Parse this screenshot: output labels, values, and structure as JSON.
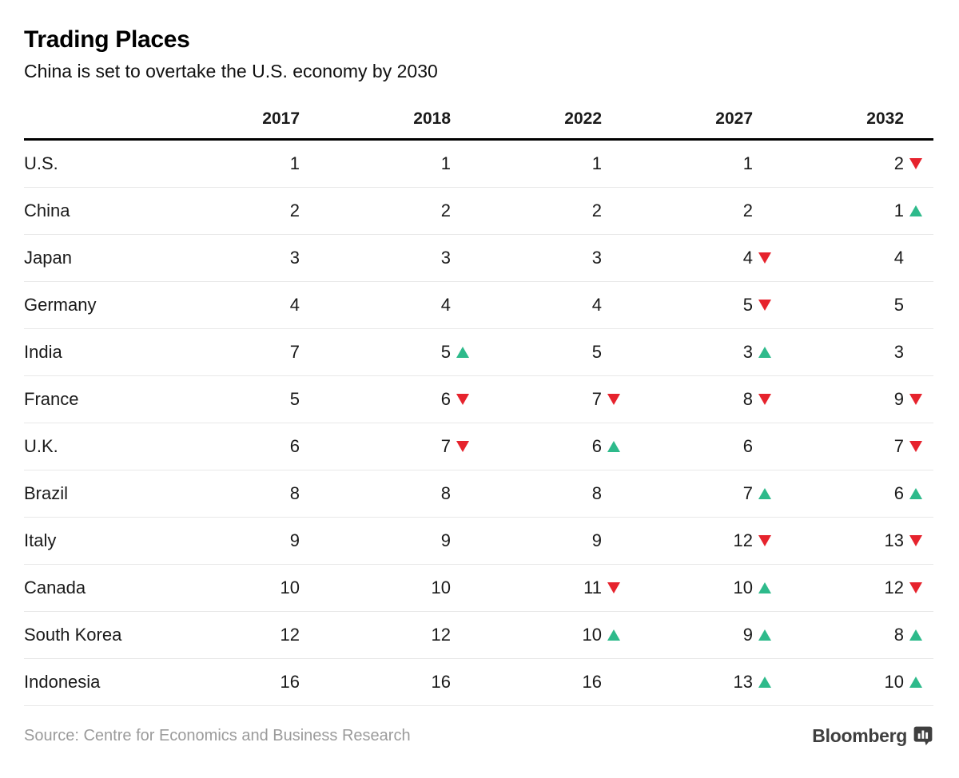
{
  "header": {
    "title": "Trading Places",
    "subtitle": "China is set to overtake the U.S. economy by 2030"
  },
  "footer": {
    "source": "Source: Centre for Economics and Business Research",
    "brand": "Bloomberg"
  },
  "colors": {
    "up": "#2eba8b",
    "down": "#e6232d",
    "rule_heavy": "#000000",
    "rule_light": "#e8e8e8",
    "text": "#1a1a1a",
    "muted": "#9b9b9b",
    "brand": "#3f3f3f"
  },
  "chart_data": {
    "type": "table",
    "title": "Trading Places",
    "subtitle": "China is set to overtake the U.S. economy by 2030",
    "columns": [
      "2017",
      "2018",
      "2022",
      "2027",
      "2032"
    ],
    "legend": {
      "up_icon_meaning": "rank improved",
      "down_icon_meaning": "rank worsened"
    },
    "rows": [
      {
        "country": "U.S.",
        "cells": [
          {
            "v": "1"
          },
          {
            "v": "1"
          },
          {
            "v": "1"
          },
          {
            "v": "1"
          },
          {
            "v": "2",
            "dir": "down"
          }
        ]
      },
      {
        "country": "China",
        "cells": [
          {
            "v": "2"
          },
          {
            "v": "2"
          },
          {
            "v": "2"
          },
          {
            "v": "2"
          },
          {
            "v": "1",
            "dir": "up"
          }
        ]
      },
      {
        "country": "Japan",
        "cells": [
          {
            "v": "3"
          },
          {
            "v": "3"
          },
          {
            "v": "3"
          },
          {
            "v": "4",
            "dir": "down"
          },
          {
            "v": "4"
          }
        ]
      },
      {
        "country": "Germany",
        "cells": [
          {
            "v": "4"
          },
          {
            "v": "4"
          },
          {
            "v": "4"
          },
          {
            "v": "5",
            "dir": "down"
          },
          {
            "v": "5"
          }
        ]
      },
      {
        "country": "India",
        "cells": [
          {
            "v": "7"
          },
          {
            "v": "5",
            "dir": "up"
          },
          {
            "v": "5"
          },
          {
            "v": "3",
            "dir": "up"
          },
          {
            "v": "3"
          }
        ]
      },
      {
        "country": "France",
        "cells": [
          {
            "v": "5"
          },
          {
            "v": "6",
            "dir": "down"
          },
          {
            "v": "7",
            "dir": "down"
          },
          {
            "v": "8",
            "dir": "down"
          },
          {
            "v": "9",
            "dir": "down"
          }
        ]
      },
      {
        "country": "U.K.",
        "cells": [
          {
            "v": "6"
          },
          {
            "v": "7",
            "dir": "down"
          },
          {
            "v": "6",
            "dir": "up"
          },
          {
            "v": "6"
          },
          {
            "v": "7",
            "dir": "down"
          }
        ]
      },
      {
        "country": "Brazil",
        "cells": [
          {
            "v": "8"
          },
          {
            "v": "8"
          },
          {
            "v": "8"
          },
          {
            "v": "7",
            "dir": "up"
          },
          {
            "v": "6",
            "dir": "up"
          }
        ]
      },
      {
        "country": "Italy",
        "cells": [
          {
            "v": "9"
          },
          {
            "v": "9"
          },
          {
            "v": "9"
          },
          {
            "v": "12",
            "dir": "down"
          },
          {
            "v": "13",
            "dir": "down"
          }
        ]
      },
      {
        "country": "Canada",
        "cells": [
          {
            "v": "10"
          },
          {
            "v": "10"
          },
          {
            "v": "11",
            "dir": "down"
          },
          {
            "v": "10",
            "dir": "up"
          },
          {
            "v": "12",
            "dir": "down"
          }
        ]
      },
      {
        "country": "South Korea",
        "cells": [
          {
            "v": "12"
          },
          {
            "v": "12"
          },
          {
            "v": "10",
            "dir": "up"
          },
          {
            "v": "9",
            "dir": "up"
          },
          {
            "v": "8",
            "dir": "up"
          }
        ]
      },
      {
        "country": "Indonesia",
        "cells": [
          {
            "v": "16"
          },
          {
            "v": "16"
          },
          {
            "v": "16"
          },
          {
            "v": "13",
            "dir": "up"
          },
          {
            "v": "10",
            "dir": "up"
          }
        ]
      }
    ]
  }
}
